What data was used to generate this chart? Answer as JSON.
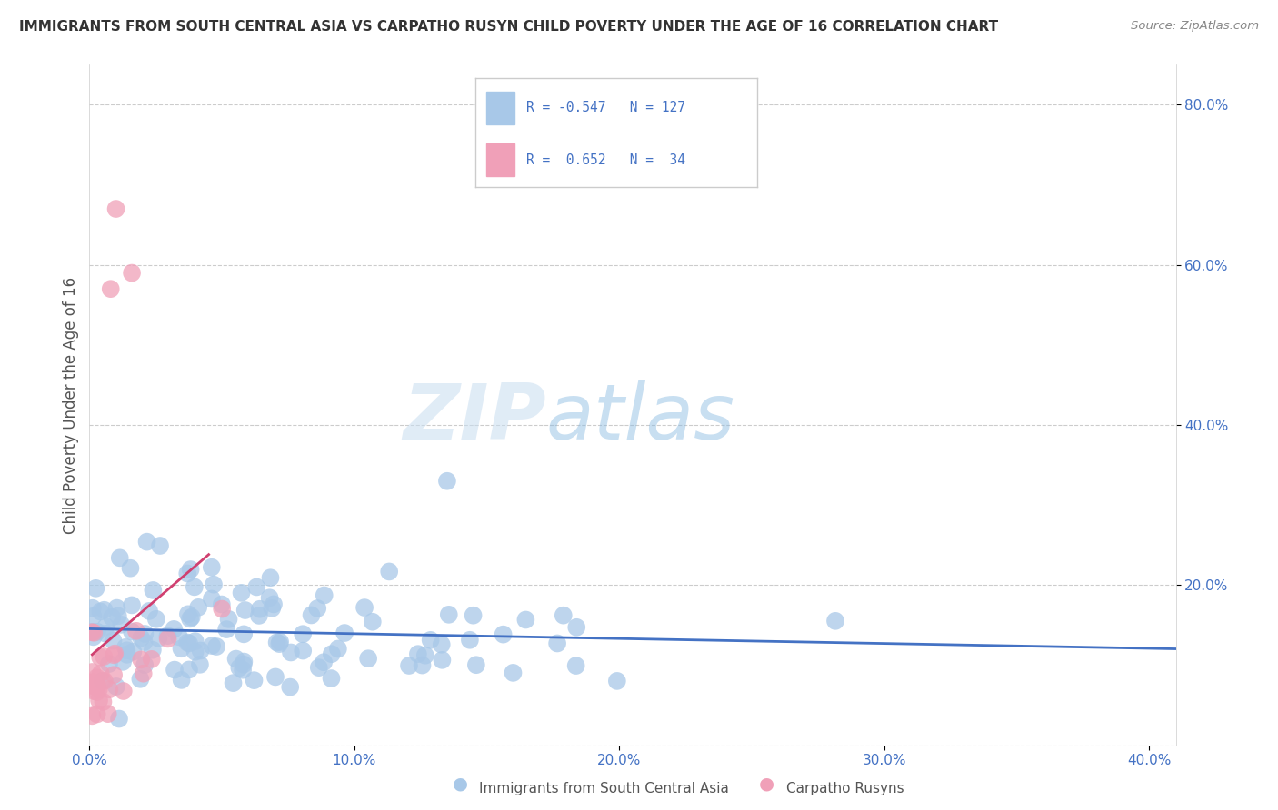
{
  "title": "IMMIGRANTS FROM SOUTH CENTRAL ASIA VS CARPATHO RUSYN CHILD POVERTY UNDER THE AGE OF 16 CORRELATION CHART",
  "source": "Source: ZipAtlas.com",
  "ylabel": "Child Poverty Under the Age of 16",
  "blue_R": -0.547,
  "blue_N": 127,
  "pink_R": 0.652,
  "pink_N": 34,
  "blue_color": "#a8c8e8",
  "pink_color": "#f0a0b8",
  "blue_line_color": "#4472c4",
  "pink_line_color": "#d04070",
  "legend_label_blue": "Immigrants from South Central Asia",
  "legend_label_pink": "Carpatho Rusyns",
  "watermark_zip": "ZIP",
  "watermark_atlas": "atlas",
  "background_color": "#ffffff",
  "grid_color": "#cccccc",
  "title_color": "#333333",
  "axis_label_color": "#555555",
  "tick_color": "#4472c4",
  "xlim": [
    0.0,
    0.41
  ],
  "ylim": [
    0.0,
    0.85
  ]
}
